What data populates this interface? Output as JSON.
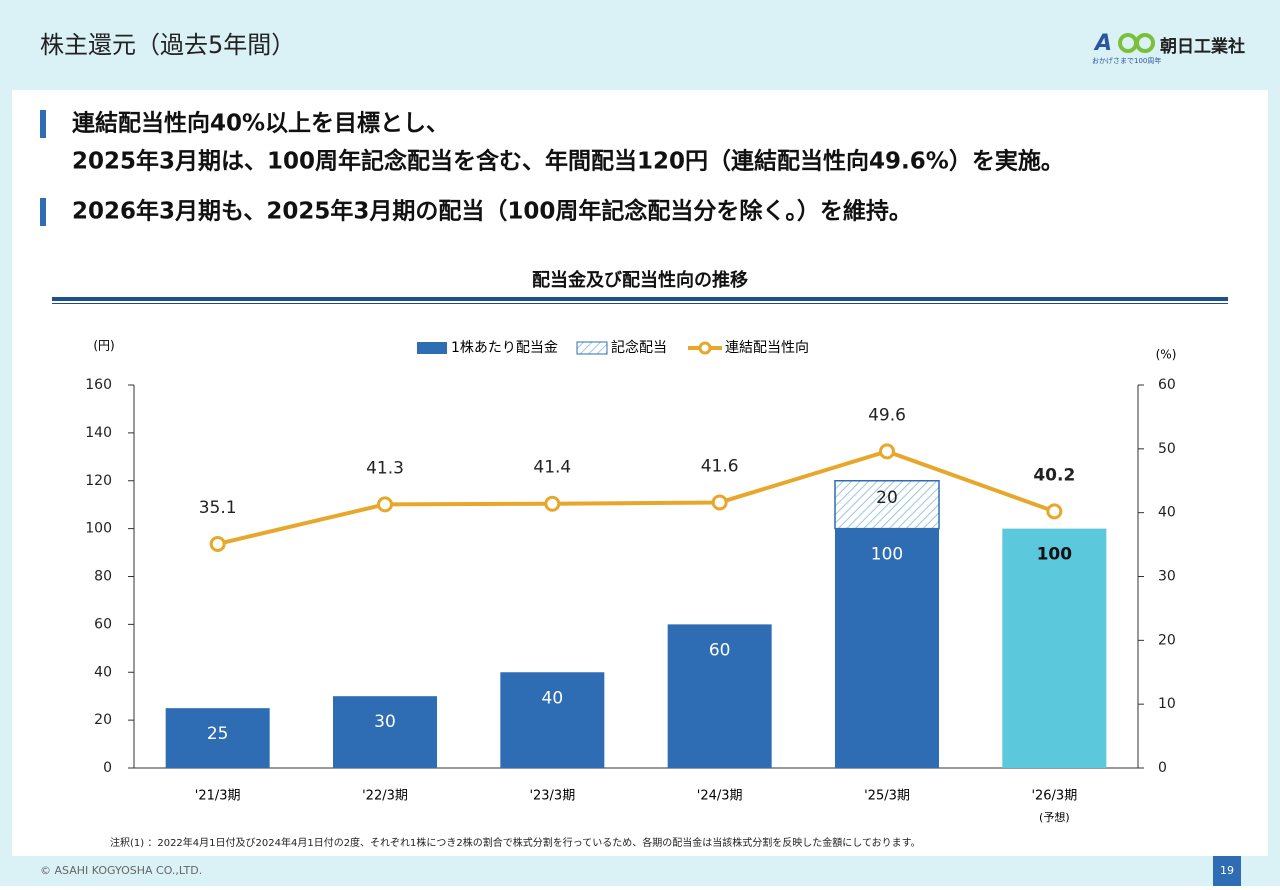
{
  "header": {
    "title": "株主還元（過去5年間）",
    "logo_name": "朝日工業社",
    "logo_tagline": "おかげさまで100周年"
  },
  "bullets": [
    [
      "連結配当性向40%以上を目標とし、",
      "2025年3月期は、100周年記念配当を含む、年間配当120円（連結配当性向49.6%）を実施。"
    ],
    [
      "2026年3月期も、2025年3月期の配当（100周年記念配当分を除く。）を維持。"
    ]
  ],
  "chart_data": {
    "type": "bar",
    "title": "配当金及び配当性向の推移",
    "y_label": "(円)",
    "y2_label": "(%)",
    "categories": [
      "'21/3期",
      "'22/3期",
      "'23/3期",
      "'24/3期",
      "'25/3期",
      "'26/3期"
    ],
    "category_notes": [
      null,
      null,
      null,
      null,
      null,
      "(予想)"
    ],
    "series": [
      {
        "name": "1株あたり配当金",
        "color": "#2e6db4",
        "colors": [
          "#2e6db4",
          "#2e6db4",
          "#2e6db4",
          "#2e6db4",
          "#2e6db4",
          "#5bc8dc"
        ],
        "values": [
          25,
          30,
          40,
          60,
          100,
          100
        ]
      },
      {
        "name": "記念配当",
        "color": "#2e6db4",
        "values": [
          null,
          null,
          null,
          null,
          20,
          null
        ]
      },
      {
        "name": "連結配当性向",
        "color": "#e8a72a",
        "axis": "y2",
        "values": [
          35.1,
          41.3,
          41.4,
          41.6,
          49.6,
          40.2
        ]
      }
    ],
    "ylim": [
      0,
      160
    ],
    "yticks": [
      0,
      20,
      40,
      60,
      80,
      100,
      120,
      140,
      160
    ],
    "y2lim": [
      0,
      60
    ],
    "y2ticks": [
      0,
      10,
      20,
      30,
      40,
      50,
      60
    ]
  },
  "footnote": "注釈(1) ：2022年4月1日付及び2024年4月1日付の2度、それぞれ1株につき2株の割合で株式分割を行っているため、各期の配当金は当該株式分割を反映した金額にしております。",
  "copyright": "© ASAHI KOGYOSHA CO.,LTD.",
  "page_number": "19"
}
